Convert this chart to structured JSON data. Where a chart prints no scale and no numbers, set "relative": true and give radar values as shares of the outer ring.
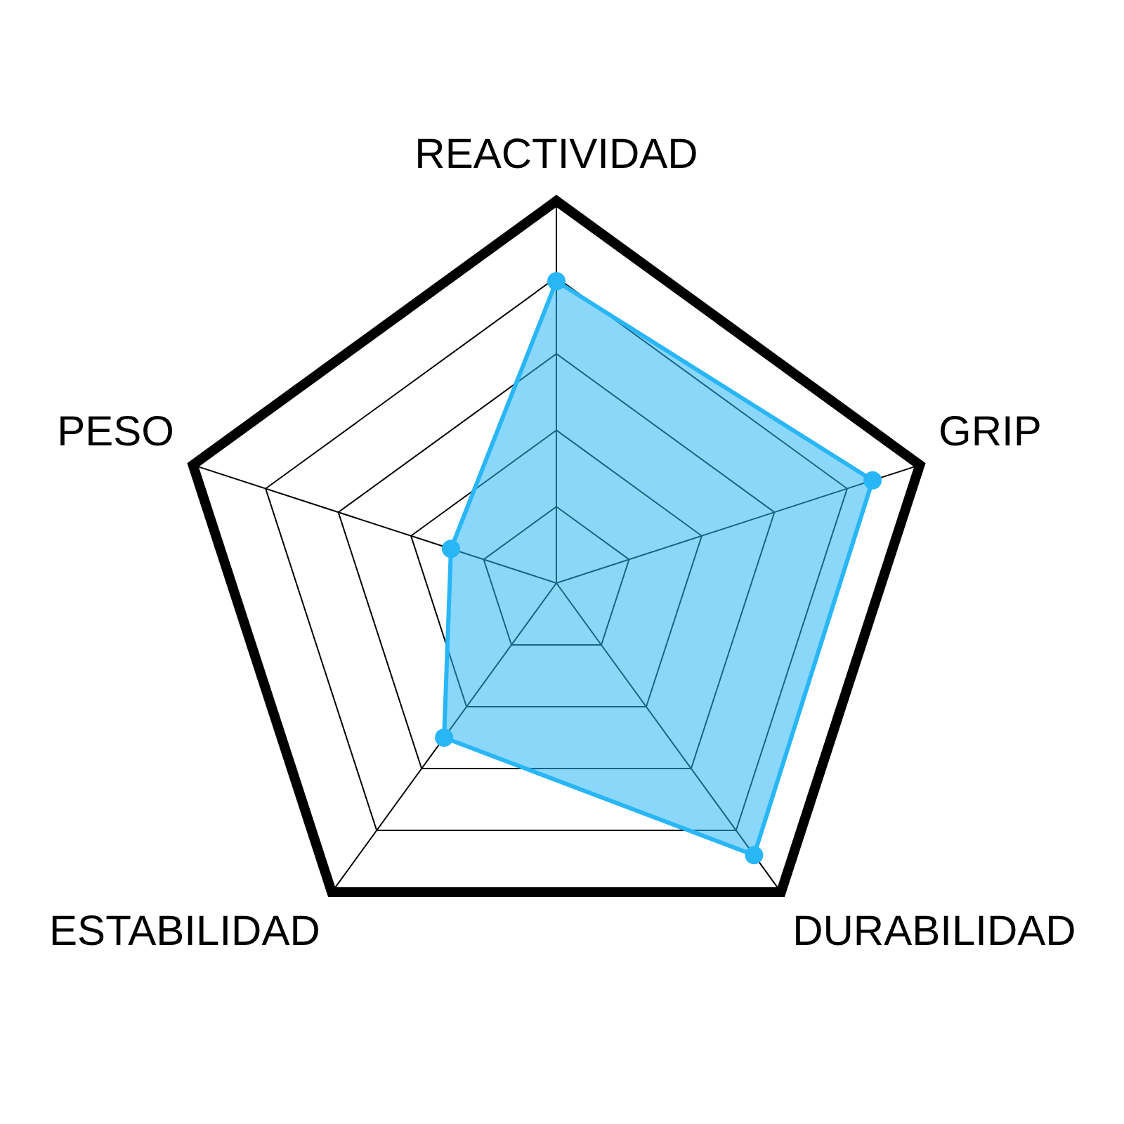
{
  "chart_data": {
    "type": "radar",
    "relative": true,
    "categories": [
      "REACTIVIDAD",
      "GRIP",
      "DURABILIDAD",
      "ESTABILIDAD",
      "PESO"
    ],
    "series": [
      {
        "color": "#29b6f6",
        "values": [
          0.79,
          0.87,
          0.88,
          0.5,
          0.29
        ]
      }
    ],
    "grid": true,
    "legend": false,
    "marker": "circle",
    "line_style": "solid"
  }
}
